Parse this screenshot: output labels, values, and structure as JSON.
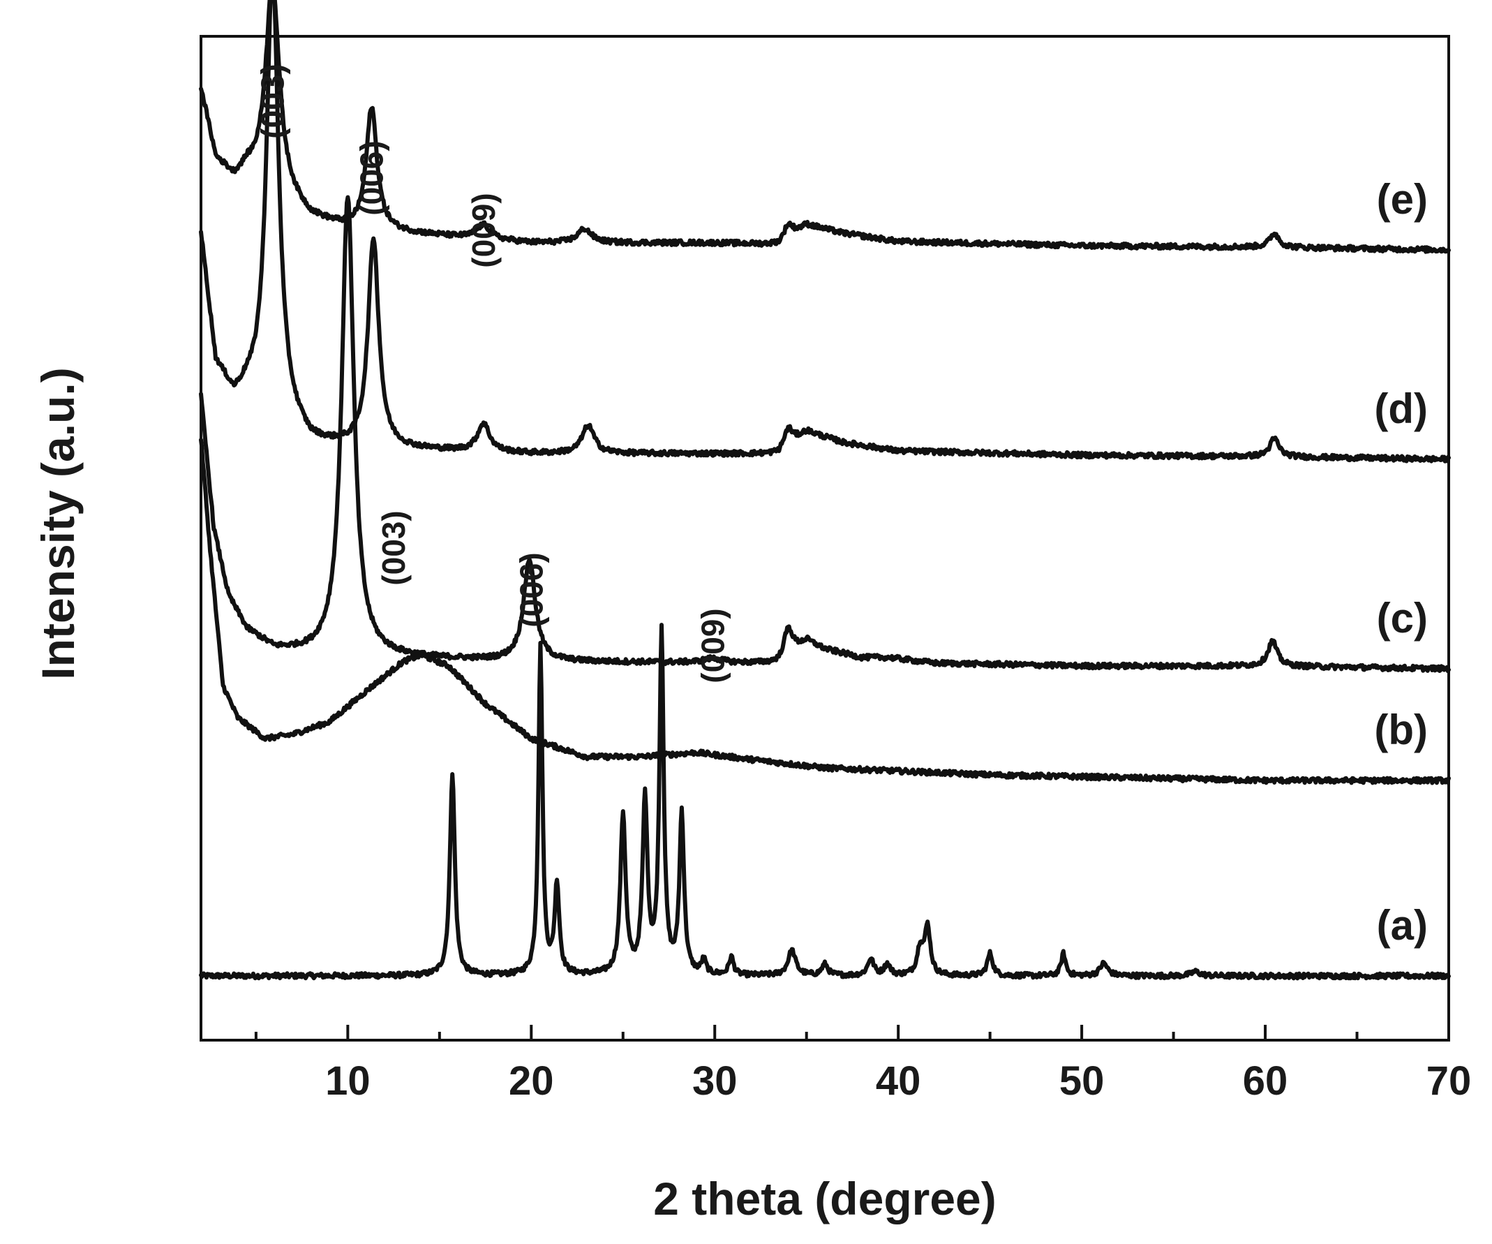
{
  "chart_data": {
    "type": "line",
    "title": "",
    "xlabel": "2 theta (degree)",
    "ylabel": "Intensity (a.u.)",
    "xlim": [
      2,
      70
    ],
    "xticks": [
      10,
      20,
      30,
      40,
      50,
      60,
      70
    ],
    "x_minor_step": 5,
    "y_ticks": "none",
    "grid": false,
    "legend": "none",
    "series": [
      {
        "name": "(a)",
        "baseline": 0,
        "background": [
          [
            2,
            0
          ],
          [
            70,
            0
          ]
        ],
        "peaks": [
          [
            15.7,
            1.45,
            0.16
          ],
          [
            20.5,
            2.35,
            0.13
          ],
          [
            21.4,
            0.65,
            0.15
          ],
          [
            25.0,
            1.15,
            0.17
          ],
          [
            26.2,
            1.25,
            0.16
          ],
          [
            27.1,
            2.45,
            0.14
          ],
          [
            28.2,
            1.15,
            0.15
          ],
          [
            29.4,
            0.1,
            0.15
          ],
          [
            30.9,
            0.13,
            0.15
          ],
          [
            34.2,
            0.18,
            0.25
          ],
          [
            36.0,
            0.08,
            0.2
          ],
          [
            38.5,
            0.12,
            0.2
          ],
          [
            39.4,
            0.08,
            0.2
          ],
          [
            41.2,
            0.2,
            0.2
          ],
          [
            41.6,
            0.34,
            0.18
          ],
          [
            45.0,
            0.16,
            0.18
          ],
          [
            49.0,
            0.16,
            0.15
          ],
          [
            51.2,
            0.09,
            0.25
          ],
          [
            56.2,
            0.03,
            0.3
          ]
        ]
      },
      {
        "name": "(b)",
        "baseline": 1.4,
        "background": [
          [
            2.0,
            2.45
          ],
          [
            2.5,
            1.65
          ],
          [
            3.2,
            0.68
          ],
          [
            4.0,
            0.45
          ],
          [
            5.5,
            0.3
          ],
          [
            7.0,
            0.33
          ],
          [
            9.0,
            0.42
          ],
          [
            11.0,
            0.64
          ],
          [
            13.0,
            0.85
          ],
          [
            14.0,
            0.9
          ],
          [
            15.5,
            0.82
          ],
          [
            17.5,
            0.55
          ],
          [
            20.0,
            0.3
          ],
          [
            23.0,
            0.17
          ],
          [
            26.0,
            0.17
          ],
          [
            29.0,
            0.2
          ],
          [
            32.0,
            0.15
          ],
          [
            36.0,
            0.09
          ],
          [
            45.0,
            0.04
          ],
          [
            60.0,
            0.0
          ],
          [
            70.0,
            0.0
          ]
        ],
        "peaks": []
      },
      {
        "name": "(c)",
        "baseline": 2.2,
        "background": [
          [
            2.0,
            1.95
          ],
          [
            2.7,
            1.0
          ],
          [
            3.5,
            0.52
          ],
          [
            4.5,
            0.28
          ],
          [
            6.0,
            0.14
          ],
          [
            8.0,
            0.1
          ],
          [
            12.0,
            0.08
          ],
          [
            20.0,
            0.05
          ],
          [
            33.5,
            0.04
          ],
          [
            35.0,
            0.2
          ],
          [
            36.0,
            0.14
          ],
          [
            38.0,
            0.08
          ],
          [
            39.5,
            0.08
          ],
          [
            42.0,
            0.04
          ],
          [
            50.0,
            0.02
          ],
          [
            60.0,
            0.02
          ],
          [
            70.0,
            0.0
          ]
        ],
        "peaks": [
          [
            10.0,
            3.3,
            0.4
          ],
          [
            19.9,
            0.73,
            0.38
          ],
          [
            29.9,
            0.03,
            0.6
          ],
          [
            34.0,
            0.2,
            0.3
          ],
          [
            60.4,
            0.18,
            0.3
          ]
        ]
      },
      {
        "name": "(d)",
        "baseline": 3.7,
        "background": [
          [
            2.0,
            1.6
          ],
          [
            2.8,
            0.68
          ],
          [
            3.8,
            0.42
          ],
          [
            4.5,
            0.45
          ],
          [
            8.0,
            0.1
          ],
          [
            10.0,
            0.08
          ],
          [
            20.0,
            0.04
          ],
          [
            33.5,
            0.04
          ],
          [
            35.0,
            0.2
          ],
          [
            37.0,
            0.12
          ],
          [
            40.0,
            0.06
          ],
          [
            50.0,
            0.03
          ],
          [
            60.0,
            0.02
          ],
          [
            70.0,
            0.0
          ]
        ],
        "peaks": [
          [
            5.9,
            3.2,
            0.4
          ],
          [
            11.4,
            1.5,
            0.35
          ],
          [
            17.4,
            0.2,
            0.4
          ],
          [
            23.1,
            0.2,
            0.4
          ],
          [
            34.0,
            0.13,
            0.3
          ],
          [
            60.5,
            0.13,
            0.3
          ]
        ]
      },
      {
        "name": "(e)",
        "baseline": 5.2,
        "background": [
          [
            2.0,
            1.15
          ],
          [
            2.8,
            0.65
          ],
          [
            3.8,
            0.5
          ],
          [
            4.5,
            0.55
          ],
          [
            8.0,
            0.22
          ],
          [
            10.0,
            0.15
          ],
          [
            20.0,
            0.05
          ],
          [
            30.0,
            0.05
          ],
          [
            33.5,
            0.04
          ],
          [
            35.0,
            0.18
          ],
          [
            37.0,
            0.12
          ],
          [
            40.0,
            0.06
          ],
          [
            50.0,
            0.03
          ],
          [
            60.0,
            0.02
          ],
          [
            70.0,
            0.0
          ]
        ],
        "peaks": [
          [
            5.9,
            1.5,
            0.45
          ],
          [
            11.3,
            0.88,
            0.35
          ],
          [
            17.4,
            0.1,
            0.45
          ],
          [
            22.9,
            0.1,
            0.45
          ],
          [
            34.0,
            0.1,
            0.3
          ],
          [
            60.5,
            0.1,
            0.3
          ]
        ]
      }
    ],
    "annotations": [
      {
        "series": "(e)",
        "text": "(003)",
        "x": 5.9
      },
      {
        "series": "(e)",
        "text": "(006)",
        "x": 11.3
      },
      {
        "series": "(e)",
        "text": "(009)",
        "x": 17.4
      },
      {
        "series": "(c)",
        "text": "(003)",
        "x": 12.5
      },
      {
        "series": "(c)",
        "text": "(006)",
        "x": 20.0
      },
      {
        "series": "(c)",
        "text": "(009)",
        "x": 29.9
      }
    ]
  }
}
